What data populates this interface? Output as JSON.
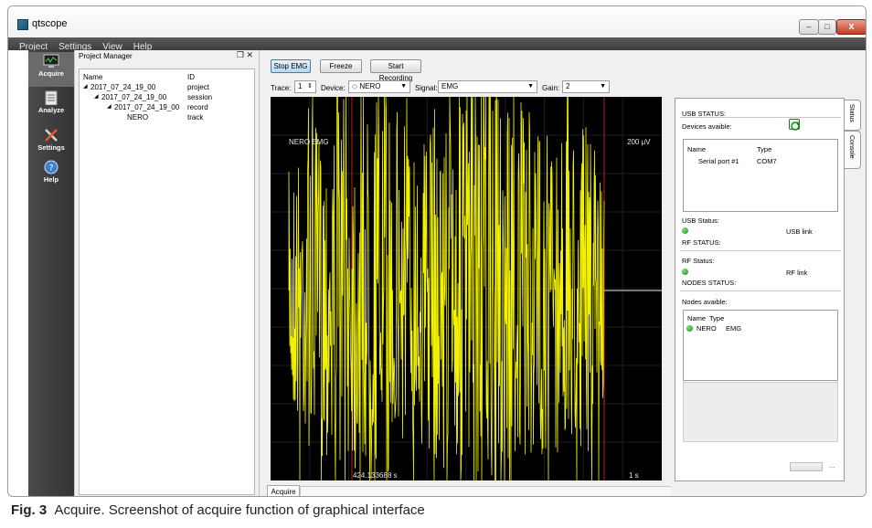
{
  "window": {
    "title": "qtscope",
    "minimize_label": "–",
    "maximize_label": "□",
    "close_label": "x"
  },
  "menu": [
    "Project",
    "Settings",
    "View",
    "Help"
  ],
  "sidebar": {
    "items": [
      {
        "label": "Acquire",
        "icon": "monitor-icon"
      },
      {
        "label": "Analyze",
        "icon": "clipboard-icon"
      },
      {
        "label": "Settings",
        "icon": "tools-icon"
      },
      {
        "label": "Help",
        "icon": "help-icon"
      }
    ]
  },
  "project_manager": {
    "title": "Project Manager",
    "controls": "❒ ✕",
    "columns": [
      "Name",
      "ID"
    ],
    "rows": [
      {
        "name": "2017_07_24_19_00",
        "id": "project",
        "arrow": "◢"
      },
      {
        "name": "2017_07_24_19_00",
        "id": "session",
        "arrow": "◢"
      },
      {
        "name": "2017_07_24_19_00",
        "id": "record",
        "arrow": "◢"
      },
      {
        "name": "NERO",
        "id": "track",
        "arrow": ""
      }
    ]
  },
  "toolbar": {
    "stop_label": "Stop EMG",
    "freeze_label": "Freeze",
    "record_label": "Start Recording",
    "trace_label": "Trace:",
    "trace_value": "1",
    "device_label": "Device:",
    "device_value": "NERO",
    "signal_label": "Signal:",
    "signal_value": "EMG",
    "gain_label": "Gain:",
    "gain_value": "2"
  },
  "scope": {
    "title": "NERO EMG",
    "scale": "200 μV",
    "time": "424.133688 s",
    "span": "1 s",
    "trace_color": "#f2f200",
    "cursor_color": "#c81e1e"
  },
  "bottom_tab": "Acquire",
  "status": {
    "usb_header": "USB STATUS:",
    "devices_available": "Devices avaible:",
    "devices_columns": [
      "Name",
      "Type"
    ],
    "devices": [
      {
        "name": "Serial port #1",
        "type": "COM7"
      }
    ],
    "usb_status_label": "USB Status:",
    "usb_link": "USB link",
    "rf_header": "RF STATUS:",
    "rf_status_label": "RF Status:",
    "rf_link": "RF link",
    "nodes_header": "NODES STATUS:",
    "nodes_available": "Nodes avaible:",
    "nodes_columns": [
      "Name",
      "Type"
    ],
    "nodes": [
      {
        "name": "NERO",
        "type": "EMG"
      }
    ],
    "ellipsis": "..."
  },
  "side_tabs": [
    "Status",
    "Console"
  ],
  "caption": {
    "label": "Fig. 3",
    "text": "Acquire. Screenshot of acquire function of graphical interface"
  }
}
